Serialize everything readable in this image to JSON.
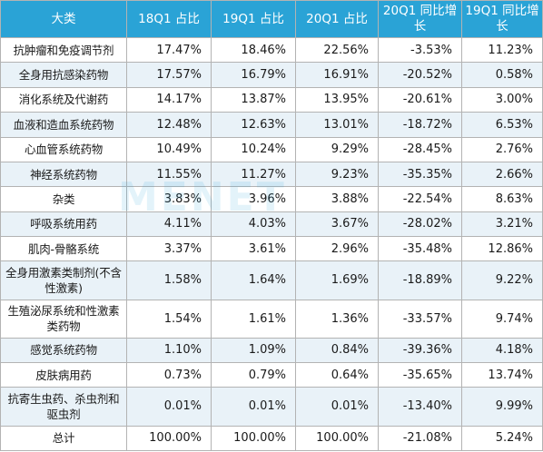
{
  "table": {
    "headers": [
      "大类",
      "18Q1 占比",
      "19Q1 占比",
      "20Q1 占比",
      "20Q1 同比增长",
      "19Q1 同比增长"
    ],
    "rows": [
      {
        "name": "抗肿瘤和免疫调节剂",
        "v18": "17.47%",
        "v19": "18.46%",
        "v20": "22.56%",
        "g20": "-3.53%",
        "g19": "11.23%"
      },
      {
        "name": "全身用抗感染药物",
        "v18": "17.57%",
        "v19": "16.79%",
        "v20": "16.91%",
        "g20": "-20.52%",
        "g19": "0.58%"
      },
      {
        "name": "消化系统及代谢药",
        "v18": "14.17%",
        "v19": "13.87%",
        "v20": "13.95%",
        "g20": "-20.61%",
        "g19": "3.00%"
      },
      {
        "name": "血液和造血系统药物",
        "v18": "12.48%",
        "v19": "12.63%",
        "v20": "13.01%",
        "g20": "-18.72%",
        "g19": "6.53%"
      },
      {
        "name": "心血管系统药物",
        "v18": "10.49%",
        "v19": "10.24%",
        "v20": "9.29%",
        "g20": "-28.45%",
        "g19": "2.76%"
      },
      {
        "name": "神经系统药物",
        "v18": "11.55%",
        "v19": "11.27%",
        "v20": "9.23%",
        "g20": "-35.35%",
        "g19": "2.66%"
      },
      {
        "name": "杂类",
        "v18": "3.83%",
        "v19": "3.96%",
        "v20": "3.88%",
        "g20": "-22.54%",
        "g19": "8.63%"
      },
      {
        "name": "呼吸系统用药",
        "v18": "4.11%",
        "v19": "4.03%",
        "v20": "3.67%",
        "g20": "-28.02%",
        "g19": "3.21%"
      },
      {
        "name": "肌肉-骨骼系统",
        "v18": "3.37%",
        "v19": "3.61%",
        "v20": "2.96%",
        "g20": "-35.48%",
        "g19": "12.86%"
      },
      {
        "name": "全身用激素类制剂(不含性激素)",
        "v18": "1.58%",
        "v19": "1.64%",
        "v20": "1.69%",
        "g20": "-18.89%",
        "g19": "9.22%"
      },
      {
        "name": "生殖泌尿系统和性激素类药物",
        "v18": "1.54%",
        "v19": "1.61%",
        "v20": "1.36%",
        "g20": "-33.57%",
        "g19": "9.74%"
      },
      {
        "name": "感觉系统药物",
        "v18": "1.10%",
        "v19": "1.09%",
        "v20": "0.84%",
        "g20": "-39.36%",
        "g19": "4.18%"
      },
      {
        "name": "皮肤病用药",
        "v18": "0.73%",
        "v19": "0.79%",
        "v20": "0.64%",
        "g20": "-35.65%",
        "g19": "13.74%"
      },
      {
        "name": "抗寄生虫药、杀虫剂和驱虫剂",
        "v18": "0.01%",
        "v19": "0.01%",
        "v20": "0.01%",
        "g20": "-13.40%",
        "g19": "9.99%"
      },
      {
        "name": "总计",
        "v18": "100.00%",
        "v19": "100.00%",
        "v20": "100.00%",
        "g20": "-21.08%",
        "g19": "5.24%"
      }
    ]
  },
  "watermark": "MENET",
  "colors": {
    "header_bg": "#2aa3d6",
    "stripe": "#e9f2f8",
    "grid": "#b3b3b3"
  }
}
